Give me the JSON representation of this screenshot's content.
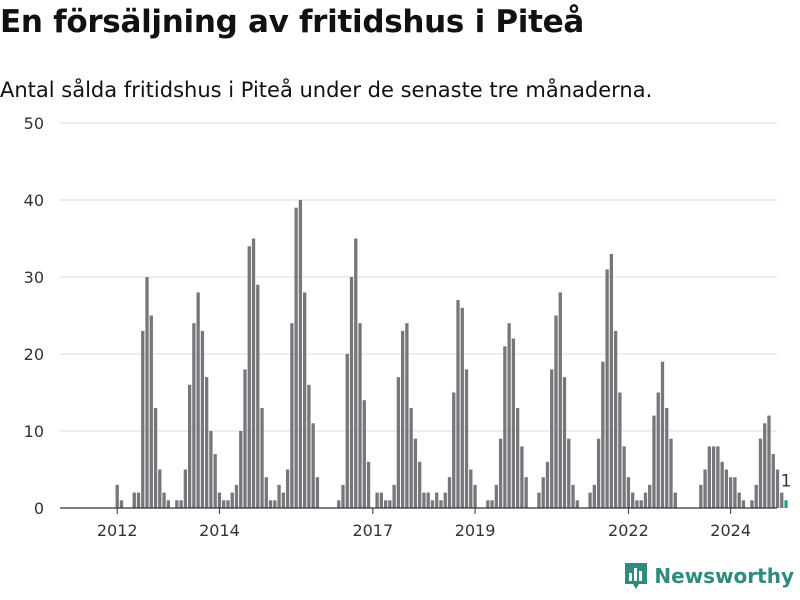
{
  "title": "En försäljning av fritidshus i Piteå",
  "subtitle": "Antal sålda fritidshus i Piteå under de senaste tre månaderna.",
  "brand": "Newsworthy",
  "colors": {
    "bar": "#77767b",
    "highlight": "#2e9c8c",
    "grid": "#dcdcdc",
    "brand": "#2e8b7e"
  },
  "chart_data": {
    "type": "bar",
    "title": "En försäljning av fritidshus i Piteå",
    "ylim": [
      0,
      50
    ],
    "yticks": [
      0,
      10,
      20,
      30,
      40,
      50
    ],
    "xticks": [
      {
        "label": "2012",
        "index": 6
      },
      {
        "label": "2014",
        "index": 30
      },
      {
        "label": "2017",
        "index": 66
      },
      {
        "label": "2019",
        "index": 90
      },
      {
        "label": "2022",
        "index": 126
      },
      {
        "label": "2024",
        "index": 150
      }
    ],
    "grid": true,
    "last_value_label": "1",
    "values": [
      0,
      0,
      0,
      0,
      0,
      0,
      3,
      1,
      0,
      0,
      2,
      2,
      23,
      30,
      25,
      13,
      5,
      2,
      1,
      0,
      1,
      1,
      5,
      16,
      24,
      28,
      23,
      17,
      10,
      7,
      2,
      1,
      1,
      2,
      3,
      10,
      18,
      34,
      35,
      29,
      13,
      4,
      1,
      1,
      3,
      2,
      5,
      24,
      39,
      40,
      28,
      16,
      11,
      4,
      0,
      0,
      0,
      0,
      1,
      3,
      20,
      30,
      35,
      24,
      14,
      6,
      0,
      2,
      2,
      1,
      1,
      3,
      17,
      23,
      24,
      13,
      9,
      6,
      2,
      2,
      1,
      2,
      1,
      2,
      4,
      15,
      27,
      26,
      18,
      5,
      3,
      0,
      0,
      1,
      1,
      3,
      9,
      21,
      24,
      22,
      13,
      8,
      4,
      0,
      0,
      2,
      4,
      6,
      18,
      25,
      28,
      17,
      9,
      3,
      1,
      0,
      0,
      2,
      3,
      9,
      19,
      31,
      33,
      23,
      15,
      8,
      4,
      2,
      1,
      1,
      2,
      3,
      12,
      15,
      19,
      13,
      9,
      2,
      0,
      0,
      0,
      0,
      0,
      3,
      5,
      8,
      8,
      8,
      6,
      5,
      4,
      4,
      2,
      1,
      0,
      1,
      3,
      9,
      11,
      12,
      7,
      5,
      2,
      1
    ]
  }
}
